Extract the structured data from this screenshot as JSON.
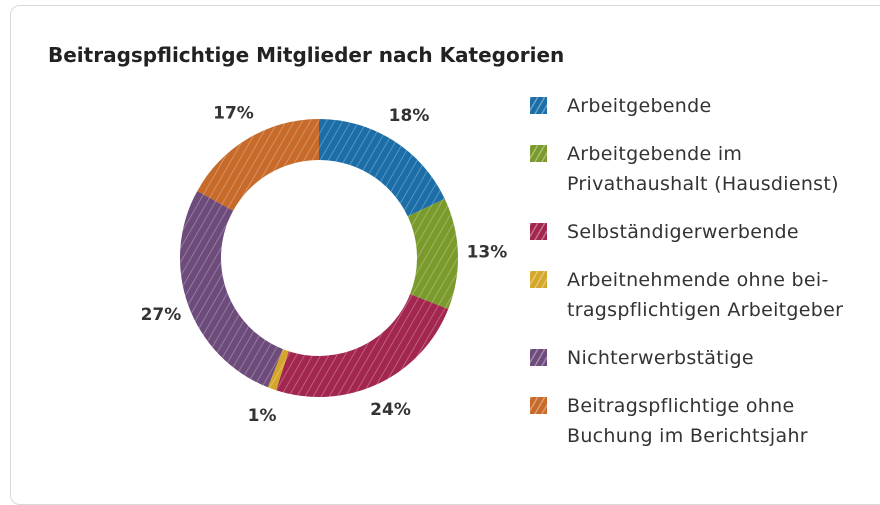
{
  "chart_data": {
    "type": "pie",
    "title": "Beitragspflichtige Mitglieder nach Kategorien",
    "categories": [
      "Arbeitgebende",
      "Arbeitgebende im\nPrivathaushalt (Hausdienst)",
      "Selbständigerwerbende",
      "Arbeitnehmende ohne bei-\ntragspflichtigen Arbeitgeber",
      "Nichterwerbstätige",
      "Beitragspflichtige ohne\nBuchung im Berichtsjahr"
    ],
    "values": [
      18,
      13,
      24,
      1,
      27,
      17
    ],
    "value_labels": [
      "18%",
      "13%",
      "24%",
      "1%",
      "27%",
      "17%"
    ],
    "colors": [
      "#1b6ea8",
      "#7a9a2b",
      "#a3264f",
      "#d4a62a",
      "#6d4b7b",
      "#c76a2a"
    ],
    "donut": true,
    "legend": "right"
  }
}
